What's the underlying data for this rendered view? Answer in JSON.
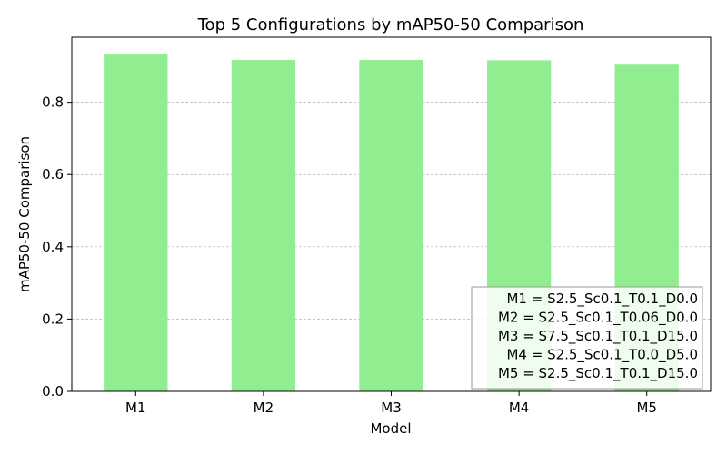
{
  "chart_data": {
    "type": "bar",
    "title": "Top 5 Configurations by mAP50-50 Comparison",
    "xlabel": "Model",
    "ylabel": "mAP50-50 Comparison",
    "categories": [
      "M1",
      "M2",
      "M3",
      "M4",
      "M5"
    ],
    "values": [
      0.932,
      0.917,
      0.917,
      0.916,
      0.904
    ],
    "ylim": [
      0,
      0.98
    ],
    "yticks": [
      0.0,
      0.2,
      0.4,
      0.6,
      0.8
    ],
    "ytick_labels": [
      "0.0",
      "0.2",
      "0.4",
      "0.6",
      "0.8"
    ],
    "grid": "y-dashed",
    "bar_color": "#90ee90",
    "grid_color": "#b0b0b0",
    "legend": {
      "placement": "lower-right",
      "entries": [
        "M1 = S2.5_Sc0.1_T0.1_D0.0",
        "M2 = S2.5_Sc0.1_T0.06_D0.0",
        "M3 = S7.5_Sc0.1_T0.1_D15.0",
        "M4 = S2.5_Sc0.1_T0.0_D5.0",
        "M5 = S2.5_Sc0.1_T0.1_D15.0"
      ]
    }
  }
}
